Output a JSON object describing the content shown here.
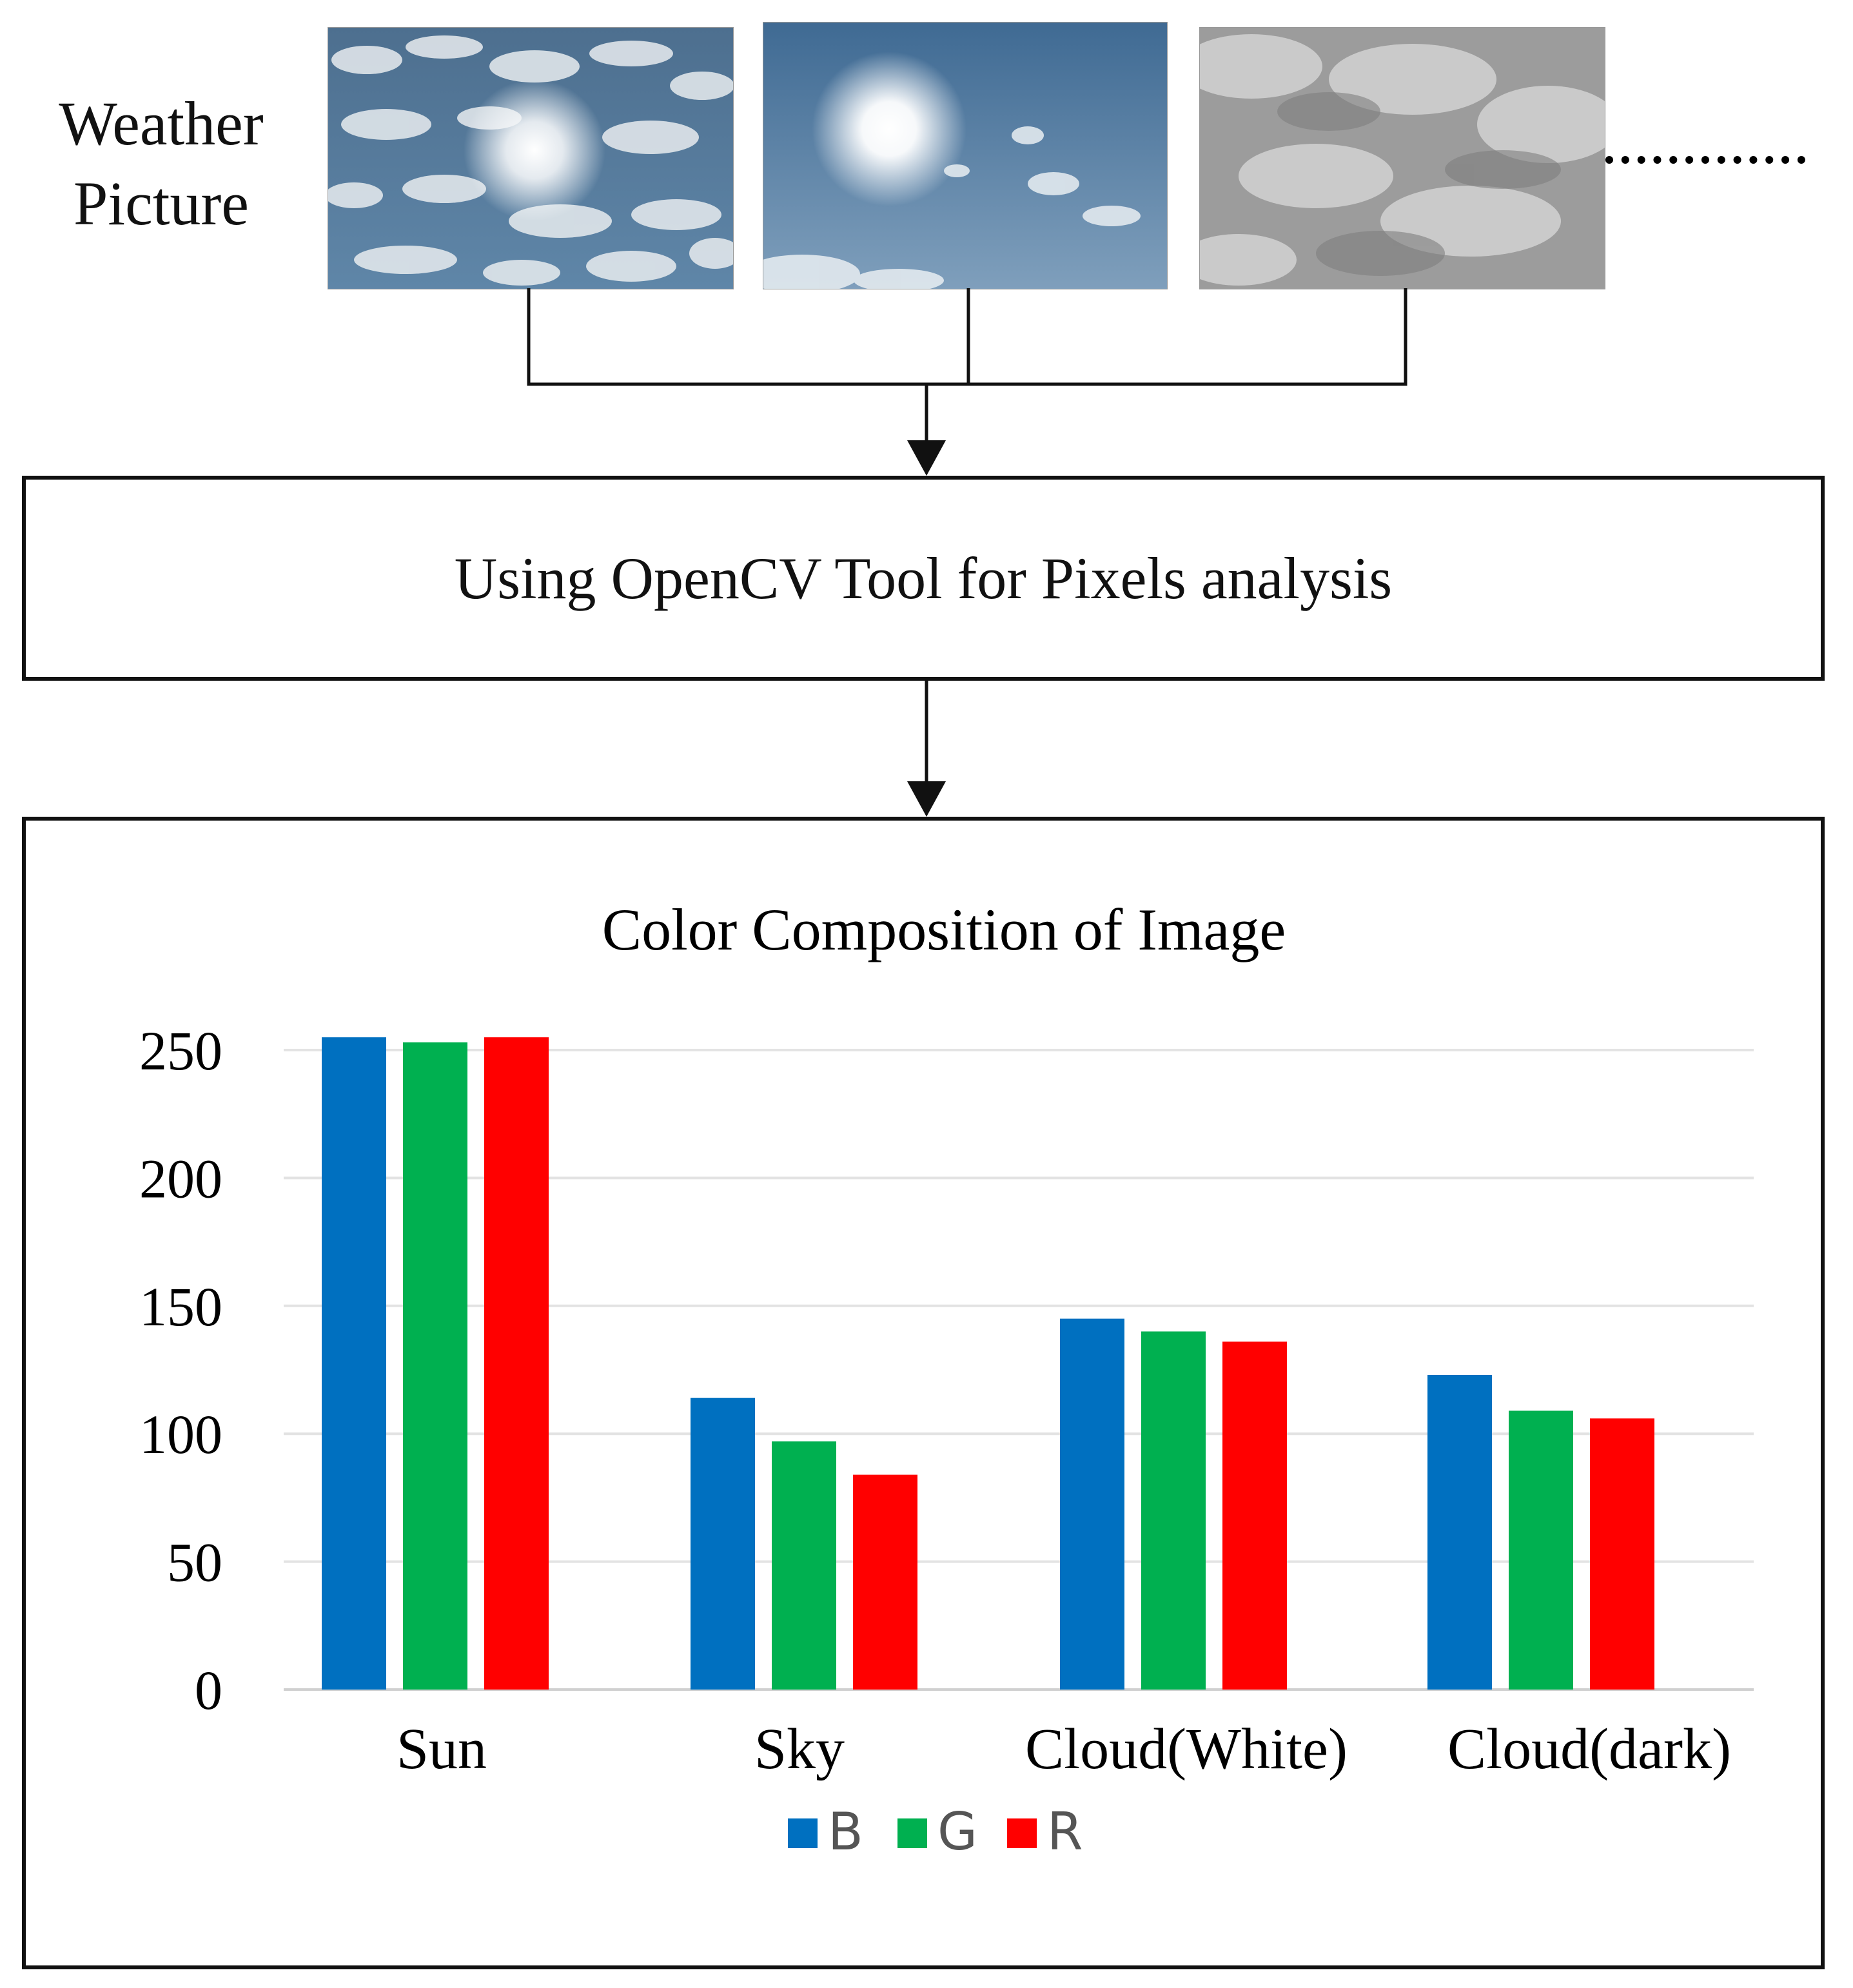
{
  "left_label": {
    "line1": "Weather",
    "line2": "Picture"
  },
  "photos": [
    {
      "name": "partly-cloudy-sun-photo"
    },
    {
      "name": "clear-sky-sun-photo"
    },
    {
      "name": "overcast-clouds-photo"
    }
  ],
  "process_box": {
    "text": "Using OpenCV Tool for Pixels analysis"
  },
  "colors": {
    "B": "#0070C0",
    "G": "#00B050",
    "R": "#FF0000",
    "grid": "#E3E3E3"
  },
  "chart_data": {
    "type": "bar",
    "title": "Color Composition of Image",
    "categories": [
      "Sun",
      "Sky",
      "Cloud(White)",
      "Cloud(dark)"
    ],
    "series": [
      {
        "name": "B",
        "values": [
          255,
          114,
          145,
          123
        ]
      },
      {
        "name": "G",
        "values": [
          253,
          97,
          140,
          109
        ]
      },
      {
        "name": "R",
        "values": [
          255,
          84,
          136,
          106
        ]
      }
    ],
    "ylim": [
      0,
      250
    ],
    "yticks": [
      "0",
      "50",
      "100",
      "150",
      "200",
      "250"
    ],
    "grid": true,
    "legend": "bottom"
  }
}
